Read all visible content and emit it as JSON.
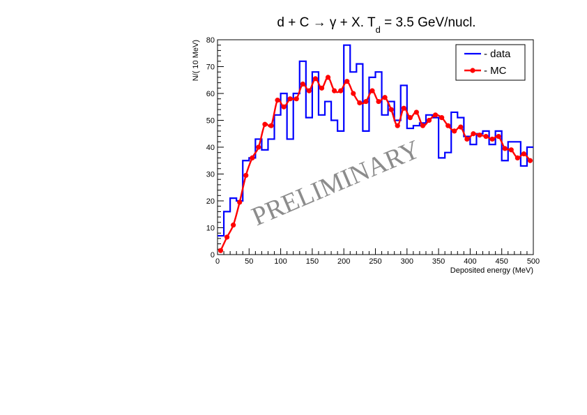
{
  "chart_data": {
    "type": "line",
    "title": "d + C → γ + X. T_d = 3.5 GeV/nucl.",
    "title_parts": {
      "main": "d + C → γ + X. T",
      "sub": "d",
      "rest": " = 3.5 GeV/nucl."
    },
    "xlabel": "Deposited energy (MeV)",
    "ylabel": "N/( 10 MeV)",
    "xlim": [
      0,
      500
    ],
    "ylim": [
      0,
      80
    ],
    "xticks": [
      0,
      50,
      100,
      150,
      200,
      250,
      300,
      350,
      400,
      450,
      500
    ],
    "yticks": [
      0,
      10,
      20,
      30,
      40,
      50,
      60,
      70,
      80
    ],
    "watermark": "PRELIMINARY",
    "legend_position": "top-right",
    "series": [
      {
        "name": "- data",
        "style": "histogram",
        "color": "#0000ff",
        "bin_width": 10,
        "x": [
          0,
          10,
          20,
          30,
          40,
          50,
          60,
          70,
          80,
          90,
          100,
          110,
          120,
          130,
          140,
          150,
          160,
          170,
          180,
          190,
          200,
          210,
          220,
          230,
          240,
          250,
          260,
          270,
          280,
          290,
          300,
          310,
          320,
          330,
          340,
          350,
          360,
          370,
          380,
          390,
          400,
          410,
          420,
          430,
          440,
          450,
          460,
          470,
          480,
          490
        ],
        "values": [
          7,
          16,
          21,
          20,
          35,
          36,
          43,
          39,
          43,
          52,
          60,
          43,
          60,
          72,
          51,
          68,
          52,
          57,
          50,
          46,
          78,
          68,
          71,
          46,
          66,
          68,
          52,
          57,
          50,
          63,
          47,
          48,
          49,
          52,
          51,
          36,
          38,
          53,
          51,
          44,
          41,
          45,
          46,
          41,
          46,
          35,
          42,
          42,
          33,
          40
        ]
      },
      {
        "name": "- MC",
        "style": "line-markers",
        "color": "#ff0000",
        "x": [
          5,
          15,
          25,
          35,
          45,
          55,
          65,
          75,
          85,
          95,
          105,
          115,
          125,
          135,
          145,
          155,
          165,
          175,
          185,
          195,
          205,
          215,
          225,
          235,
          245,
          255,
          265,
          275,
          285,
          295,
          305,
          315,
          325,
          335,
          345,
          355,
          365,
          375,
          385,
          395,
          405,
          415,
          425,
          435,
          445,
          455,
          465,
          475,
          485,
          495
        ],
        "values": [
          1.5,
          6.5,
          11,
          19.5,
          29.5,
          36,
          40,
          48.5,
          48,
          57.5,
          55,
          58,
          58,
          63.5,
          61,
          65.5,
          62,
          66,
          61,
          61,
          64.5,
          60,
          56.5,
          57,
          61,
          57,
          58.5,
          54,
          48,
          54.5,
          51,
          53,
          48,
          50,
          52,
          51,
          48,
          46,
          47.5,
          43,
          45,
          44.5,
          44,
          43,
          44,
          39.5,
          39,
          36,
          37.5,
          35
        ]
      }
    ]
  }
}
